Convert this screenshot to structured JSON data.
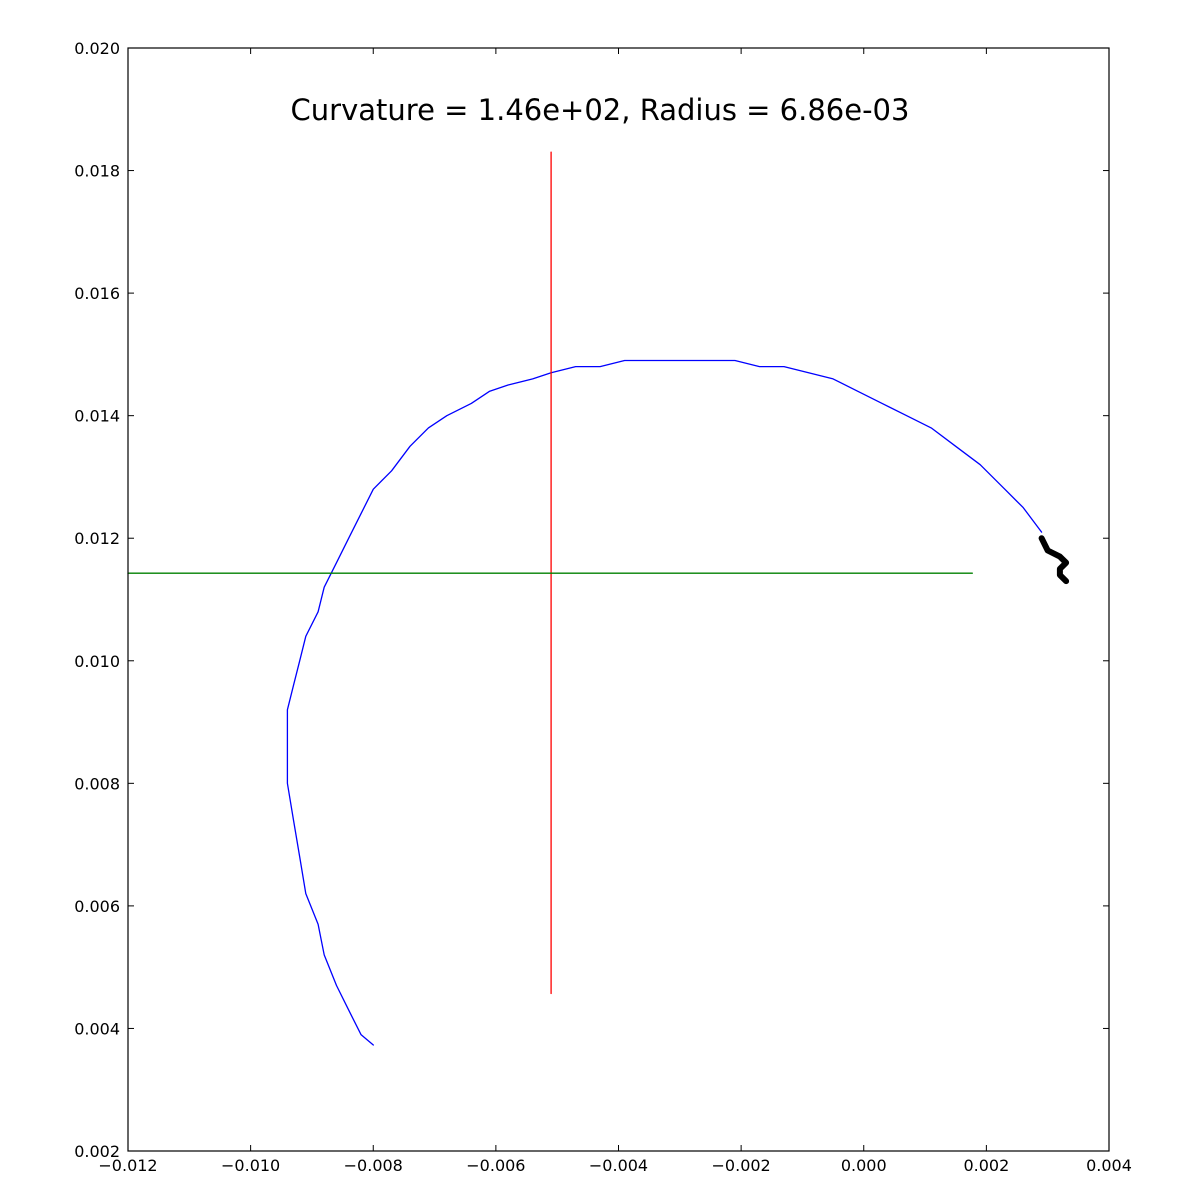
{
  "chart_data": {
    "type": "line",
    "title": "Curvature = 1.46e+02, Radius = 6.86e-03",
    "xlabel": "",
    "ylabel": "",
    "xlim": [
      -0.012,
      0.004
    ],
    "ylim": [
      0.002,
      0.02
    ],
    "grid": false,
    "x_ticks": [
      "−0.012",
      "−0.010",
      "−0.008",
      "−0.006",
      "−0.004",
      "−0.002",
      "0.000",
      "0.002",
      "0.004"
    ],
    "x_tick_values": [
      -0.012,
      -0.01,
      -0.008,
      -0.006,
      -0.004,
      -0.002,
      0.0,
      0.002,
      0.004
    ],
    "y_ticks": [
      "0.002",
      "0.004",
      "0.006",
      "0.008",
      "0.010",
      "0.012",
      "0.014",
      "0.016",
      "0.018",
      "0.020"
    ],
    "y_tick_values": [
      0.002,
      0.004,
      0.006,
      0.008,
      0.01,
      0.012,
      0.014,
      0.016,
      0.018,
      0.02
    ],
    "series": [
      {
        "color": "#0000ff",
        "x": [
          -0.008,
          -0.0082,
          -0.0084,
          -0.0086,
          -0.0088,
          -0.0089,
          -0.0091,
          -0.0092,
          -0.0093,
          -0.0094,
          -0.0094,
          -0.0094,
          -0.0094,
          -0.0093,
          -0.0092,
          -0.0091,
          -0.0089,
          -0.0088,
          -0.0086,
          -0.0084,
          -0.0082,
          -0.008,
          -0.0077,
          -0.0074,
          -0.0071,
          -0.0068,
          -0.0064,
          -0.0061,
          -0.0058,
          -0.0054,
          -0.0051,
          -0.0047,
          -0.0043,
          -0.0039,
          -0.0035,
          -0.003,
          -0.0026,
          -0.0021,
          -0.0017,
          -0.0013,
          -0.0009,
          -0.0005,
          -0.0001,
          0.0003,
          0.0007,
          0.0011,
          0.0015,
          0.0019,
          0.0023,
          0.0026,
          0.0029
        ],
        "y": [
          0.00373,
          0.0039,
          0.0043,
          0.0047,
          0.0052,
          0.0057,
          0.0062,
          0.0068,
          0.0074,
          0.008,
          0.0084,
          0.0088,
          0.0092,
          0.0096,
          0.01,
          0.0104,
          0.0108,
          0.0112,
          0.0116,
          0.012,
          0.0124,
          0.0128,
          0.0131,
          0.0135,
          0.0138,
          0.014,
          0.0142,
          0.0144,
          0.0145,
          0.0146,
          0.0147,
          0.0148,
          0.0148,
          0.0149,
          0.0149,
          0.0149,
          0.0149,
          0.0149,
          0.0148,
          0.0148,
          0.0147,
          0.0146,
          0.0144,
          0.0142,
          0.014,
          0.0138,
          0.0135,
          0.0132,
          0.0128,
          0.0125,
          0.0121
        ]
      },
      {
        "color": "#ff0000",
        "x": [
          -0.0051,
          -0.0051
        ],
        "y": [
          0.00457,
          0.0183
        ]
      },
      {
        "color": "#008000",
        "x": [
          -0.012,
          0.00177
        ],
        "y": [
          0.01143,
          0.01143
        ]
      },
      {
        "color": "#000000",
        "x": [
          0.0029,
          0.003,
          0.0032,
          0.0033,
          0.0032,
          0.0032,
          0.0033
        ],
        "y": [
          0.012,
          0.0118,
          0.0117,
          0.0116,
          0.0115,
          0.0114,
          0.0113
        ]
      }
    ]
  }
}
